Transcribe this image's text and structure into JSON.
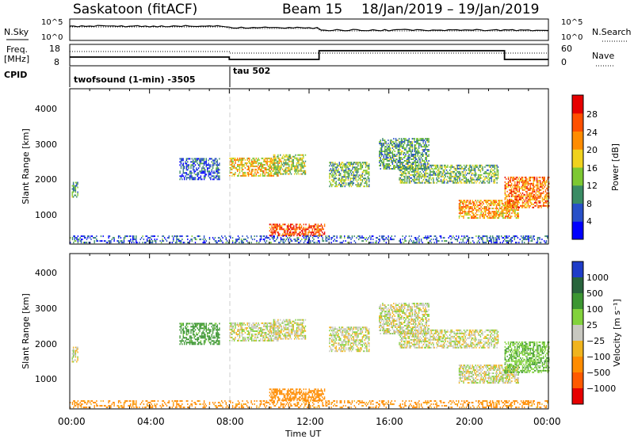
{
  "header": {
    "title": "Saskatoon (fitACF)",
    "beam": "Beam 15",
    "date_range": "18/Jan/2019 – 19/Jan/2019"
  },
  "top_panel": {
    "left_label": "N.Sky",
    "right_label": "N.Search",
    "tick_hi": "10^5",
    "tick_lo": "10^0"
  },
  "freq_panel": {
    "left_label_1": "Freq.",
    "left_label_2": "[MHz]",
    "right_label": "Nave",
    "left_ticks": [
      "18",
      "8"
    ],
    "right_ticks": [
      "60",
      "0"
    ]
  },
  "cpid": {
    "label": "CPID",
    "entries": [
      "twofsound (1-min) -3505",
      "tau 502"
    ]
  },
  "panels": {
    "ylabel": "Slant Range [km]",
    "yticks": [
      "4000",
      "3000",
      "2000",
      "1000"
    ]
  },
  "power_bar": {
    "label": "Power [dB]",
    "ticks": [
      "28",
      "24",
      "20",
      "16",
      "12",
      "8",
      "4"
    ],
    "colors": [
      "#0000ff",
      "#2850c8",
      "#3a8c64",
      "#7dc832",
      "#f0d21e",
      "#ff8c00",
      "#ff5000",
      "#e60000"
    ]
  },
  "velocity_bar": {
    "label": "Velocity [m s⁻¹]",
    "ticks": [
      "1000",
      "500",
      "100",
      "25",
      "−25",
      "−100",
      "−500",
      "−1000"
    ],
    "colors": [
      "#1e3cc8",
      "#28643c",
      "#3c9632",
      "#82d23c",
      "#c8c8c0",
      "#f0b41e",
      "#ff8c00",
      "#ff5a00",
      "#e60000"
    ]
  },
  "xaxis": {
    "label": "Time UT",
    "ticks": [
      "00:00",
      "04:00",
      "08:00",
      "12:00",
      "16:00",
      "20:00",
      "00:00"
    ]
  },
  "chart_data": {
    "type": "heatmap",
    "title": "Saskatoon (fitACF)",
    "subtitle": "Beam 15  18/Jan/2019 – 19/Jan/2019",
    "xlabel": "Time UT",
    "ylabel": "Slant Range [km]",
    "xlim_hours": [
      0,
      24
    ],
    "ylim_km": [
      180,
      4600
    ],
    "mode_change_hour": 8,
    "power_scale_db": [
      0,
      30
    ],
    "velocity_scale_ms": [
      -1000,
      1000
    ],
    "echo_regions": [
      {
        "t_start": 0.1,
        "t_end": 0.4,
        "r_min": 1500,
        "r_max": 1950,
        "power_db": 10,
        "velocity_ms": 0
      },
      {
        "t_start": 5.5,
        "t_end": 7.5,
        "r_min": 2000,
        "r_max": 2600,
        "power_db": 6,
        "velocity_ms": 150
      },
      {
        "t_start": 8.0,
        "t_end": 10.5,
        "r_min": 2100,
        "r_max": 2600,
        "power_db": 18,
        "velocity_ms": 0
      },
      {
        "t_start": 10.2,
        "t_end": 11.8,
        "r_min": 2150,
        "r_max": 2700,
        "power_db": 14,
        "velocity_ms": 0
      },
      {
        "t_start": 10.0,
        "t_end": 12.8,
        "r_min": 400,
        "r_max": 750,
        "power_db": 24,
        "velocity_ms": -200
      },
      {
        "t_start": 13.0,
        "t_end": 15.0,
        "r_min": 1800,
        "r_max": 2500,
        "power_db": 12,
        "velocity_ms": 0
      },
      {
        "t_start": 15.5,
        "t_end": 18.0,
        "r_min": 2300,
        "r_max": 3200,
        "power_db": 10,
        "velocity_ms": 0
      },
      {
        "t_start": 16.5,
        "t_end": 21.5,
        "r_min": 1900,
        "r_max": 2400,
        "power_db": 12,
        "velocity_ms": 0
      },
      {
        "t_start": 19.5,
        "t_end": 22.5,
        "r_min": 900,
        "r_max": 1400,
        "power_db": 20,
        "velocity_ms": 0
      },
      {
        "t_start": 21.8,
        "t_end": 24.0,
        "r_min": 1200,
        "r_max": 2100,
        "power_db": 22,
        "velocity_ms": 80
      },
      {
        "t_start": 0.0,
        "t_end": 24.0,
        "r_min": 200,
        "r_max": 400,
        "power_db": 6,
        "velocity_ms": -150
      }
    ]
  }
}
